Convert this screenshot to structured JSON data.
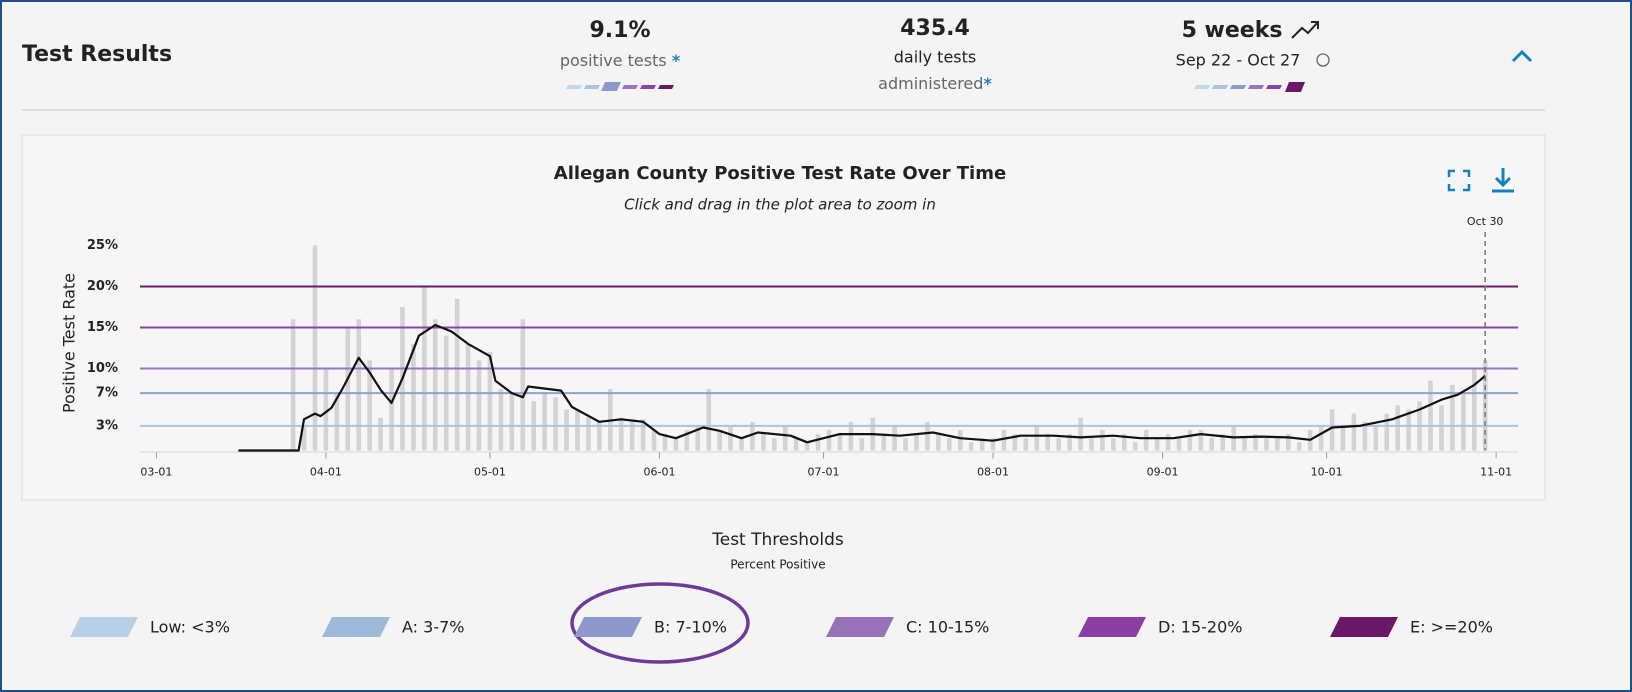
{
  "header": {
    "title": "Test Results"
  },
  "metrics": [
    {
      "value": "9.1%",
      "label": "positive tests",
      "note": "*"
    },
    {
      "value": "435.4",
      "label": [
        "daily tests",
        "administered"
      ],
      "note": "*"
    },
    {
      "value": "5 weeks",
      "label": "Sep 22 - Oct 27"
    }
  ],
  "chart_data": {
    "type": "bar_line",
    "title": "Allegan County Positive Test Rate Over Time",
    "subtitle": "Click and drag in the plot area to zoom in",
    "y_label": "Positive Test Rate",
    "xlim": [
      "02-27",
      "11-05"
    ],
    "xticks": [
      "03-01",
      "04-01",
      "05-01",
      "06-01",
      "07-01",
      "08-01",
      "09-01",
      "10-01",
      "11-01"
    ],
    "ylim": [
      0,
      25
    ],
    "yticks": [
      {
        "value": 3,
        "label": "3%"
      },
      {
        "value": 7,
        "label": "7%"
      },
      {
        "value": 10,
        "label": "10%"
      },
      {
        "value": 15,
        "label": "15%"
      },
      {
        "value": 20,
        "label": "20%"
      },
      {
        "value": 25,
        "label": "25%"
      }
    ],
    "thresholds": [
      {
        "value": 3,
        "color": "#a9c5e2"
      },
      {
        "value": 7,
        "color": "#8f9fd2"
      },
      {
        "value": 10,
        "color": "#9a74bf"
      },
      {
        "value": 15,
        "color": "#8d42a8"
      },
      {
        "value": 20,
        "color": "#6b1a6e"
      }
    ],
    "marker": {
      "label": "Oct 30",
      "x": "10-30"
    },
    "series": [
      {
        "kind": "bar",
        "color": "#d3d3d3",
        "x": [
          "03-26",
          "03-28",
          "03-30",
          "04-01",
          "04-03",
          "04-05",
          "04-07",
          "04-09",
          "04-11",
          "04-13",
          "04-15",
          "04-17",
          "04-19",
          "04-21",
          "04-23",
          "04-25",
          "04-27",
          "04-29",
          "05-01",
          "05-03",
          "05-05",
          "05-07",
          "05-09",
          "05-11",
          "05-13",
          "05-15",
          "05-17",
          "05-19",
          "05-21",
          "05-23",
          "05-25",
          "05-27",
          "05-29",
          "05-31",
          "06-02",
          "06-04",
          "06-06",
          "06-08",
          "06-10",
          "06-12",
          "06-14",
          "06-16",
          "06-18",
          "06-20",
          "06-22",
          "06-24",
          "06-26",
          "06-28",
          "06-30",
          "07-02",
          "07-04",
          "07-06",
          "07-08",
          "07-10",
          "07-12",
          "07-14",
          "07-16",
          "07-18",
          "07-20",
          "07-22",
          "07-24",
          "07-26",
          "07-28",
          "07-30",
          "08-01",
          "08-03",
          "08-05",
          "08-07",
          "08-09",
          "08-11",
          "08-13",
          "08-15",
          "08-17",
          "08-19",
          "08-21",
          "08-23",
          "08-25",
          "08-27",
          "08-29",
          "08-31",
          "09-02",
          "09-04",
          "09-06",
          "09-08",
          "09-10",
          "09-12",
          "09-14",
          "09-16",
          "09-18",
          "09-20",
          "09-22",
          "09-24",
          "09-26",
          "09-28",
          "09-30",
          "10-02",
          "10-04",
          "10-06",
          "10-08",
          "10-10",
          "10-12",
          "10-14",
          "10-16",
          "10-18",
          "10-20",
          "10-22",
          "10-24",
          "10-26",
          "10-28",
          "10-30"
        ],
        "values": [
          16,
          3,
          25,
          10,
          7,
          15,
          16,
          11,
          4,
          10,
          17.5,
          13,
          20,
          16,
          14,
          18.5,
          13,
          11,
          12,
          7.5,
          7,
          16,
          6,
          7,
          6.5,
          5,
          5,
          4,
          3.5,
          7.5,
          4,
          3.5,
          3.8,
          2.5,
          2,
          1.5,
          2.5,
          3,
          7.5,
          2.5,
          3,
          1.5,
          3.5,
          2,
          1.5,
          3,
          1.5,
          1,
          2,
          2.5,
          2,
          3.5,
          1.5,
          4,
          2,
          3,
          1.5,
          2,
          3.5,
          2,
          1.5,
          2.5,
          1,
          1.5,
          1.5,
          2.5,
          2,
          1.5,
          3,
          2,
          1.5,
          2,
          4,
          1.5,
          2.5,
          1.5,
          2,
          1,
          2.5,
          1.5,
          2,
          1.5,
          2.5,
          2.5,
          1.5,
          2,
          3,
          1.5,
          2,
          1.5,
          1.5,
          2,
          1,
          2.5,
          3,
          5,
          3,
          4.5,
          3.5,
          3,
          4.5,
          5.5,
          5,
          6,
          8.5,
          5.5,
          8,
          7,
          10,
          11
        ]
      },
      {
        "kind": "line",
        "color": "#111111",
        "x": [
          "03-16",
          "03-27",
          "03-28",
          "03-30",
          "03-31",
          "04-02",
          "04-04",
          "04-07",
          "04-09",
          "04-11",
          "04-13",
          "04-15",
          "04-18",
          "04-21",
          "04-24",
          "04-27",
          "05-01",
          "05-02",
          "05-05",
          "05-07",
          "05-08",
          "05-14",
          "05-16",
          "05-21",
          "05-25",
          "05-29",
          "06-01",
          "06-04",
          "06-09",
          "06-12",
          "06-16",
          "06-19",
          "06-25",
          "06-28",
          "07-04",
          "07-10",
          "07-15",
          "07-21",
          "07-26",
          "08-01",
          "08-06",
          "08-12",
          "08-17",
          "08-23",
          "08-28",
          "09-03",
          "09-08",
          "09-14",
          "09-19",
          "09-24",
          "09-28",
          "10-02",
          "10-07",
          "10-13",
          "10-18",
          "10-22",
          "10-25",
          "10-28",
          "10-30"
        ],
        "values": [
          0,
          0,
          3.8,
          4.5,
          4.2,
          5.2,
          7.5,
          11.3,
          9.5,
          7.4,
          5.8,
          8.8,
          14,
          15.3,
          14.5,
          13,
          11.5,
          8.5,
          7,
          6.5,
          7.8,
          7.3,
          5.3,
          3.5,
          3.8,
          3.5,
          2,
          1.5,
          2.8,
          2.4,
          1.5,
          2.2,
          1.8,
          1,
          2,
          2,
          1.8,
          2.2,
          1.5,
          1.2,
          1.8,
          1.8,
          1.6,
          1.8,
          1.5,
          1.5,
          2,
          1.6,
          1.7,
          1.6,
          1.3,
          2.8,
          3,
          3.8,
          5,
          6.2,
          6.8,
          8,
          9.1
        ]
      }
    ],
    "legend": {
      "title": "Test Thresholds",
      "subtitle": "Percent Positive",
      "items": [
        {
          "label": "Low: <3%",
          "color": "#b9cfe5"
        },
        {
          "label": "A: 3-7%",
          "color": "#9dbadb"
        },
        {
          "label": "B: 7-10%",
          "color": "#8e99cb"
        },
        {
          "label": "C: 10-15%",
          "color": "#9872b8"
        },
        {
          "label": "D: 15-20%",
          "color": "#8a3fa3"
        },
        {
          "label": "E: >=20%",
          "color": "#6b1768"
        }
      ]
    }
  }
}
